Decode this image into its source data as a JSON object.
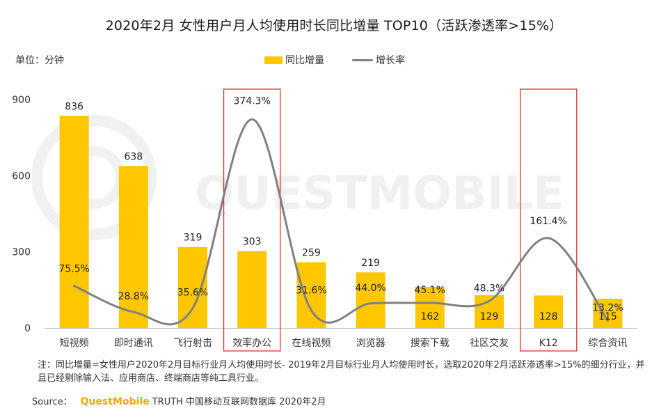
{
  "title": "2020年2月 女性用户月人均使用时长同比增量 TOP10（活跃渗透率>15%）",
  "unit": "单位：分钟",
  "watermark": "QUESTMOBILE",
  "legend": {
    "bar_label": "同比增量",
    "line_label": "增长率"
  },
  "colors": {
    "bar": "#FFC700",
    "line": "#808080",
    "highlight_box": "#D9251C",
    "axis": "#BFBFBF",
    "brand": "#F5A800"
  },
  "note": "注：同比增量=女性用户2020年2月目标行业月人均使用时长- 2019年2月目标行业月人均使用时长，选取2020年2月活跃渗透率>15%的细分行业，并且已经剔除输入法、应用商店、终端商店等纯工具行业。",
  "source": {
    "label": "Source：",
    "brand": "QuestMobile",
    "text": "TRUTH 中国移动互联网数据库 2020年2月"
  },
  "chart_data": {
    "type": "bar",
    "title": "2020年2月 女性用户月人均使用时长同比增量 TOP10（活跃渗透率>15%）",
    "categories": [
      "短视频",
      "即时通讯",
      "飞行射击",
      "效率办公",
      "在线视频",
      "浏览器",
      "搜索下载",
      "社区交友",
      "K12",
      "综合资讯"
    ],
    "series": [
      {
        "name": "同比增量",
        "type": "bar",
        "values": [
          836,
          638,
          319,
          303,
          259,
          219,
          162,
          129,
          128,
          115
        ],
        "labels": [
          "836",
          "638",
          "319",
          "303",
          "259",
          "219",
          "162",
          "129",
          "128",
          "115"
        ]
      },
      {
        "name": "增长率",
        "type": "line",
        "values": [
          75.5,
          28.8,
          35.6,
          374.3,
          31.6,
          44.0,
          45.1,
          48.3,
          161.4,
          13.2
        ],
        "labels": [
          "75.5%",
          "28.8%",
          "35.6%",
          "374.3%",
          "31.6%",
          "44.0%",
          "45.1%",
          "48.3%",
          "161.4%",
          "13.2%"
        ]
      }
    ],
    "ylim": [
      0,
      900
    ],
    "yticks": [
      "0",
      "300",
      "600",
      "900"
    ],
    "highlighted_categories": [
      "效率办公",
      "K12"
    ],
    "legend_position": "top-center",
    "grid": false
  }
}
